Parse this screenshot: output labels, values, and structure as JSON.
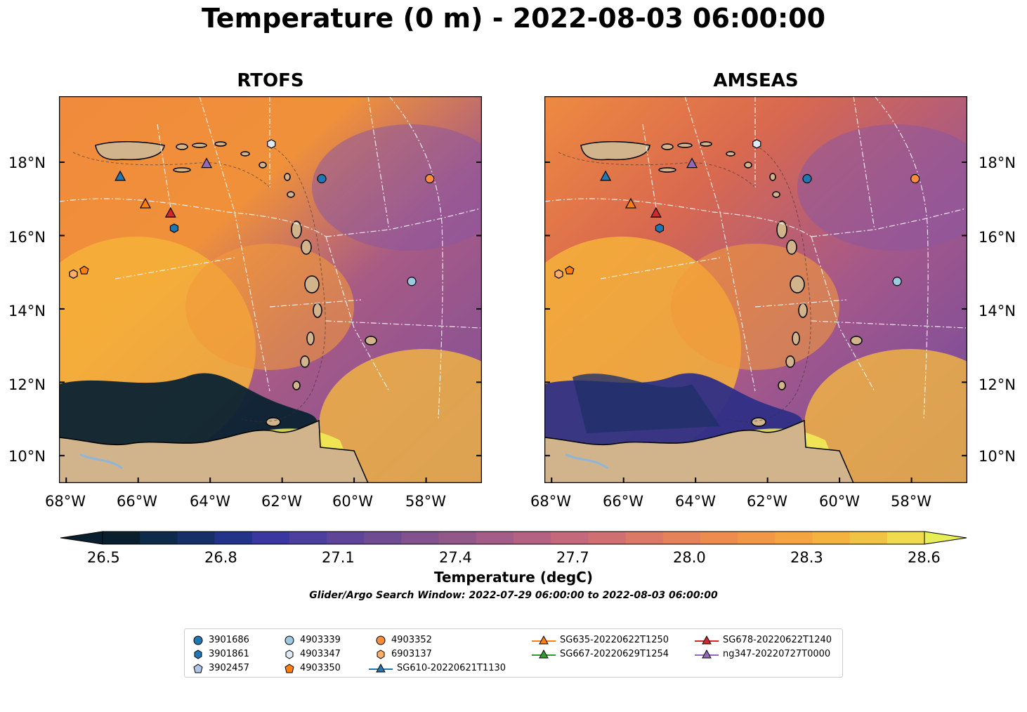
{
  "title": "Temperature (0 m) - 2022-08-03 06:00:00",
  "panels": [
    {
      "title": "RTOFS"
    },
    {
      "title": "AMSEAS"
    }
  ],
  "lon_ticks": [
    "68°W",
    "66°W",
    "64°W",
    "62°W",
    "60°W",
    "58°W"
  ],
  "lat_ticks": [
    "18°N",
    "16°N",
    "14°N",
    "12°N",
    "10°N"
  ],
  "colorbar": {
    "label": "Temperature (degC)",
    "ticks": [
      "26.5",
      "26.8",
      "27.1",
      "27.4",
      "27.7",
      "28.0",
      "28.3",
      "28.6"
    ],
    "range": [
      26.5,
      28.6
    ]
  },
  "search_window": "Glider/Argo Search Window: 2022-07-29 06:00:00 to 2022-08-03 06:00:00",
  "legend": [
    {
      "label": "3901686",
      "marker": "circle",
      "color": "#1f77b4"
    },
    {
      "label": "3901861",
      "marker": "hexagon",
      "color": "#1f77b4"
    },
    {
      "label": "3902457",
      "marker": "pentagon",
      "color": "#aec7e8"
    },
    {
      "label": "4903339",
      "marker": "circle",
      "color": "#9ecae1"
    },
    {
      "label": "4903347",
      "marker": "hexagon",
      "color": "#deebf7"
    },
    {
      "label": "4903350",
      "marker": "pentagon",
      "color": "#ff7f0e"
    },
    {
      "label": "4903352",
      "marker": "circle",
      "color": "#fd8d3c"
    },
    {
      "label": "6903137",
      "marker": "hexagon",
      "color": "#fdae6b"
    },
    {
      "label": "SG610-20220621T1130",
      "marker": "triangle-line",
      "color": "#1f77b4"
    },
    {
      "label": "SG635-20220622T1250",
      "marker": "triangle-line",
      "color": "#ff7f0e"
    },
    {
      "label": "SG667-20220629T1254",
      "marker": "triangle-line",
      "color": "#2ca02c"
    },
    {
      "label": "SG678-20220622T1240",
      "marker": "triangle-line",
      "color": "#d62728"
    },
    {
      "label": "ng347-20220727T0000",
      "marker": "triangle-line",
      "color": "#9467bd"
    }
  ],
  "markers": [
    {
      "name": "SG610-20220621T1130",
      "lon": -66.5,
      "lat": 17.6,
      "shape": "triangle",
      "color": "#1f77b4"
    },
    {
      "name": "SG635-20220622T1250",
      "lon": -65.8,
      "lat": 16.85,
      "shape": "triangle",
      "color": "#ff7f0e"
    },
    {
      "name": "SG678-20220622T1240",
      "lon": -65.1,
      "lat": 16.6,
      "shape": "triangle",
      "color": "#d62728"
    },
    {
      "name": "ng347-20220727T0000",
      "lon": -64.1,
      "lat": 17.95,
      "shape": "triangle",
      "color": "#9467bd"
    },
    {
      "name": "3901861",
      "lon": -65.0,
      "lat": 16.2,
      "shape": "hexagon",
      "color": "#1f77b4"
    },
    {
      "name": "4903347",
      "lon": -62.3,
      "lat": 18.5,
      "shape": "hexagon",
      "color": "#deebf7"
    },
    {
      "name": "6903137",
      "lon": -67.8,
      "lat": 14.95,
      "shape": "hexagon",
      "color": "#fdae6b"
    },
    {
      "name": "4903350",
      "lon": -67.5,
      "lat": 15.05,
      "shape": "pentagon",
      "color": "#ff7f0e"
    },
    {
      "name": "3901686",
      "lon": -60.9,
      "lat": 17.55,
      "shape": "circle",
      "color": "#1f77b4"
    },
    {
      "name": "4903352",
      "lon": -57.9,
      "lat": 17.55,
      "shape": "circle",
      "color": "#fd8d3c"
    },
    {
      "name": "4903339",
      "lon": -58.4,
      "lat": 14.75,
      "shape": "circle",
      "color": "#9ecae1"
    }
  ]
}
